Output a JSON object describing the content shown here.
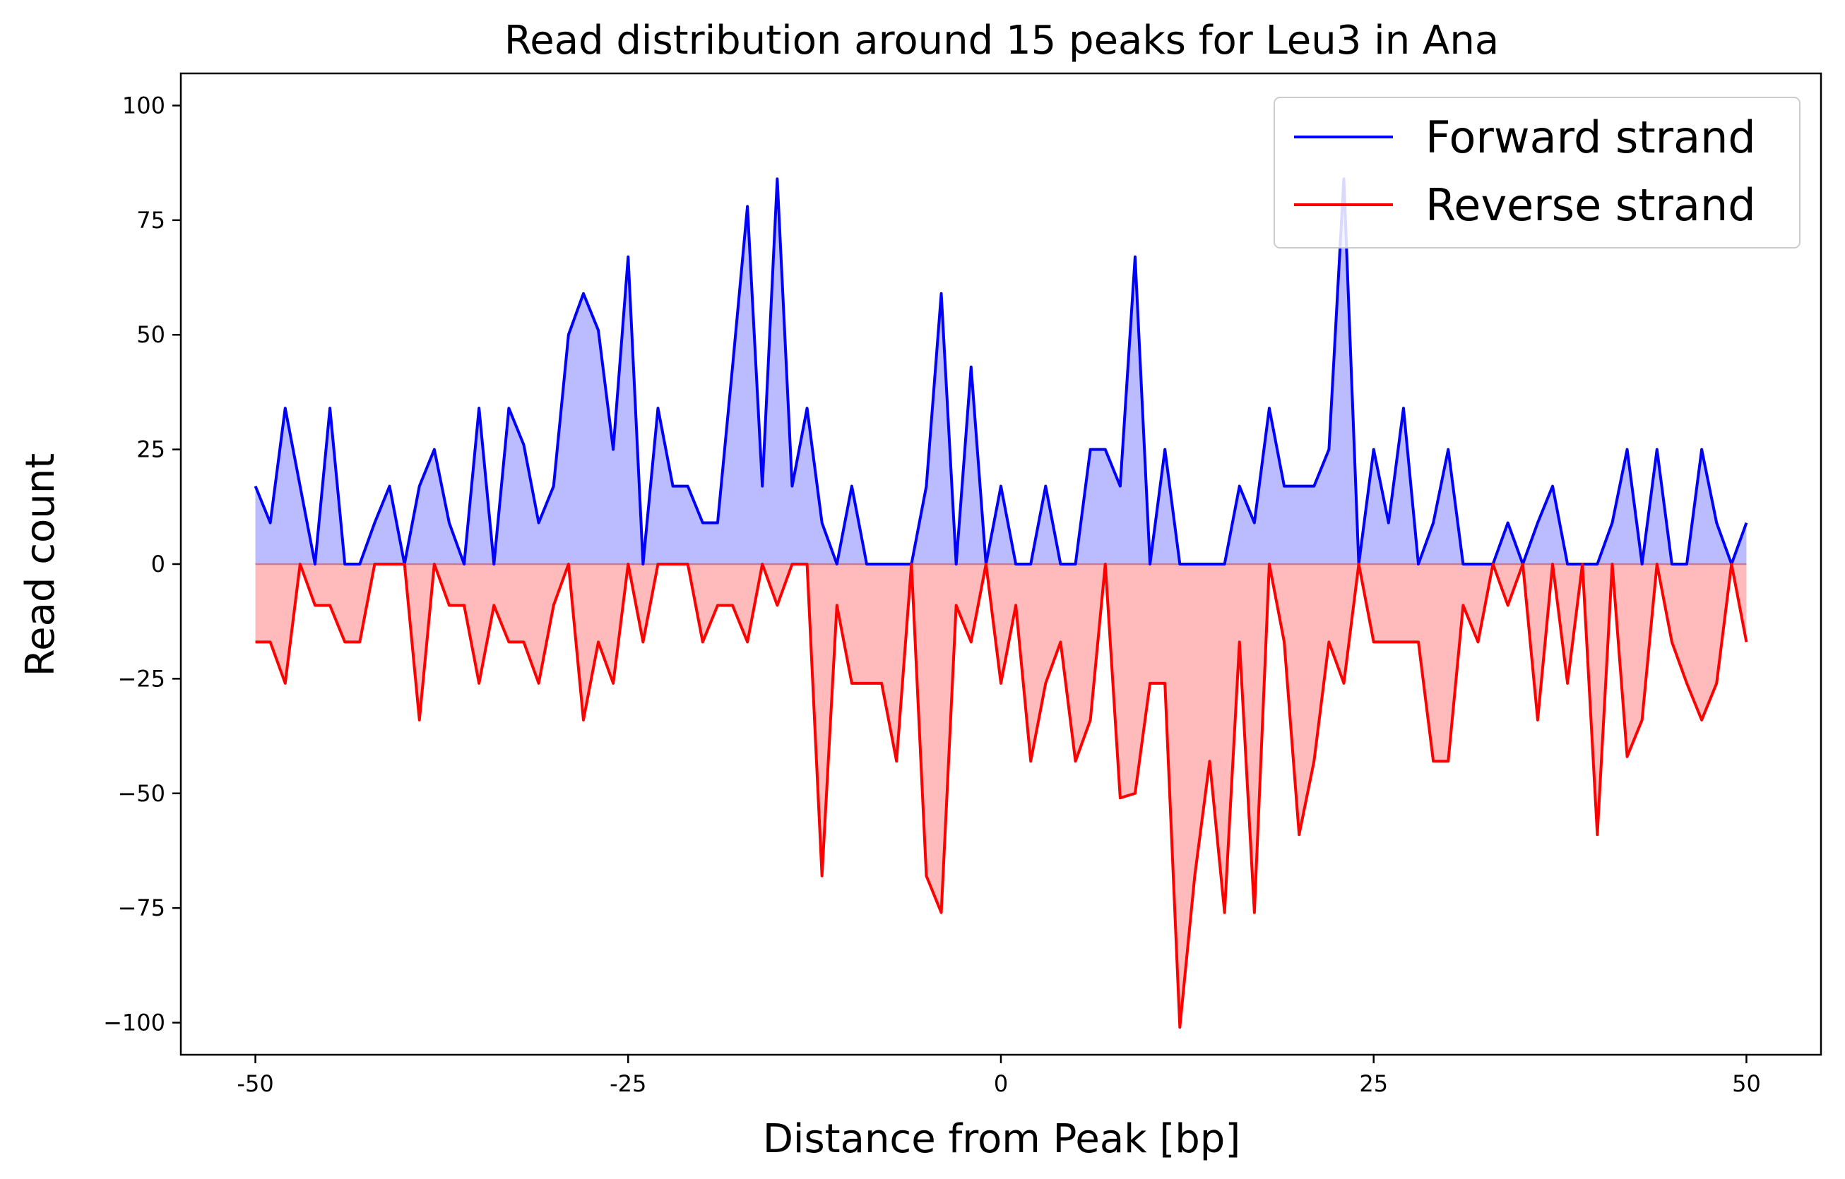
{
  "chart_data": {
    "type": "line",
    "title": "Read distribution around 15 peaks for Leu3 in Ana",
    "xlabel": "Distance from Peak [bp]",
    "ylabel": "Read count",
    "xlim": [
      -55,
      55
    ],
    "ylim": [
      -107,
      107
    ],
    "xticks": [
      -50,
      -25,
      0,
      25,
      50
    ],
    "xtick_labels": [
      "-50",
      "-25",
      "0",
      "25",
      "50"
    ],
    "yticks": [
      -100,
      -75,
      -50,
      -25,
      0,
      25,
      50,
      75,
      100
    ],
    "ytick_labels": [
      "−100",
      "−75",
      "−50",
      "−25",
      "0",
      "25",
      "50",
      "75",
      "100"
    ],
    "grid": false,
    "legend_position": "top-right",
    "x": [
      -50,
      -49,
      -48,
      -47,
      -46,
      -45,
      -44,
      -43,
      -42,
      -41,
      -40,
      -39,
      -38,
      -37,
      -36,
      -35,
      -34,
      -33,
      -32,
      -31,
      -30,
      -29,
      -28,
      -27,
      -26,
      -25,
      -24,
      -23,
      -22,
      -21,
      -20,
      -19,
      -18,
      -17,
      -16,
      -15,
      -14,
      -13,
      -12,
      -11,
      -10,
      -9,
      -8,
      -7,
      -6,
      -5,
      -4,
      -3,
      -2,
      -1,
      0,
      1,
      2,
      3,
      4,
      5,
      6,
      7,
      8,
      9,
      10,
      11,
      12,
      13,
      14,
      15,
      16,
      17,
      18,
      19,
      20,
      21,
      22,
      23,
      24,
      25,
      26,
      27,
      28,
      29,
      30,
      31,
      32,
      33,
      34,
      35,
      36,
      37,
      38,
      39,
      40,
      41,
      42,
      43,
      44,
      45,
      46,
      47,
      48,
      49,
      50
    ],
    "series": [
      {
        "name": "Forward strand",
        "color": "#0000ff",
        "fill": "#bbbbff",
        "values": [
          17,
          9,
          34,
          17,
          0,
          34,
          0,
          0,
          9,
          17,
          0,
          17,
          25,
          9,
          0,
          34,
          0,
          34,
          26,
          9,
          17,
          50,
          59,
          51,
          25,
          67,
          0,
          34,
          17,
          17,
          9,
          9,
          43,
          78,
          17,
          84,
          17,
          34,
          9,
          0,
          17,
          0,
          0,
          0,
          0,
          17,
          59,
          0,
          43,
          0,
          17,
          0,
          0,
          17,
          0,
          0,
          25,
          25,
          17,
          67,
          0,
          25,
          0,
          0,
          0,
          0,
          17,
          9,
          34,
          17,
          17,
          17,
          25,
          84,
          0,
          25,
          9,
          34,
          0,
          9,
          25,
          0,
          0,
          0,
          9,
          0,
          9,
          17,
          0,
          0,
          0,
          9,
          25,
          0,
          25,
          0,
          0,
          25,
          9,
          0,
          9
        ]
      },
      {
        "name": "Reverse strand",
        "color": "#ff0000",
        "fill": "#ffbbbb",
        "values": [
          -17,
          -17,
          -26,
          0,
          -9,
          -9,
          -17,
          -17,
          0,
          0,
          0,
          -34,
          0,
          -9,
          -9,
          -26,
          -9,
          -17,
          -17,
          -26,
          -9,
          0,
          -34,
          -17,
          -26,
          0,
          -17,
          0,
          0,
          0,
          -17,
          -9,
          -9,
          -17,
          0,
          -9,
          0,
          0,
          -68,
          -9,
          -26,
          -26,
          -26,
          -43,
          0,
          -68,
          -76,
          -9,
          -17,
          0,
          -26,
          -9,
          -43,
          -26,
          -17,
          -43,
          -34,
          0,
          -51,
          -50,
          -26,
          -26,
          -101,
          -68,
          -43,
          -76,
          -17,
          -76,
          0,
          -17,
          -59,
          -43,
          -17,
          -26,
          0,
          -17,
          -17,
          -17,
          -17,
          -43,
          -43,
          -9,
          -17,
          0,
          -9,
          0,
          -34,
          0,
          -26,
          0,
          -59,
          0,
          -42,
          -34,
          0,
          -17,
          -26,
          -34,
          -26,
          0,
          -17
        ]
      }
    ]
  }
}
